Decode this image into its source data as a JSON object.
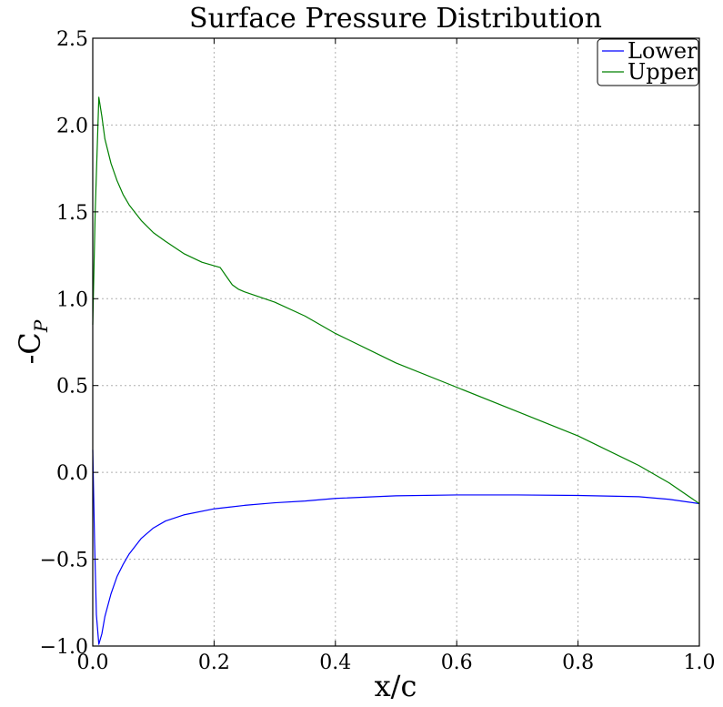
{
  "chart_data": {
    "type": "line",
    "title": "Surface Pressure Distribution",
    "xlabel": "x/c",
    "ylabel_main": "-C",
    "ylabel_sub": "P",
    "xlim": [
      0.0,
      1.0
    ],
    "ylim": [
      -1.0,
      2.5
    ],
    "xticks": [
      "0.0",
      "0.2",
      "0.4",
      "0.6",
      "0.8",
      "1.0"
    ],
    "yticks": [
      "−1.0",
      "−0.5",
      "0.0",
      "0.5",
      "1.0",
      "1.5",
      "2.0",
      "2.5"
    ],
    "grid": true,
    "legend_position": "top-right",
    "series": [
      {
        "name": "Lower",
        "color": "#0000ff",
        "x": [
          0.0,
          0.003,
          0.006,
          0.01,
          0.015,
          0.02,
          0.03,
          0.04,
          0.05,
          0.06,
          0.08,
          0.1,
          0.12,
          0.15,
          0.2,
          0.25,
          0.3,
          0.35,
          0.4,
          0.5,
          0.6,
          0.7,
          0.8,
          0.9,
          0.95,
          1.0
        ],
        "y": [
          0.13,
          -0.4,
          -0.82,
          -0.99,
          -0.93,
          -0.83,
          -0.7,
          -0.6,
          -0.53,
          -0.47,
          -0.38,
          -0.32,
          -0.28,
          -0.245,
          -0.21,
          -0.19,
          -0.175,
          -0.165,
          -0.15,
          -0.135,
          -0.13,
          -0.13,
          -0.133,
          -0.14,
          -0.155,
          -0.18
        ]
      },
      {
        "name": "Upper",
        "color": "#008000",
        "x": [
          0.0,
          0.004,
          0.01,
          0.015,
          0.02,
          0.03,
          0.04,
          0.05,
          0.06,
          0.08,
          0.1,
          0.12,
          0.15,
          0.18,
          0.2,
          0.21,
          0.22,
          0.23,
          0.24,
          0.25,
          0.3,
          0.35,
          0.4,
          0.5,
          0.6,
          0.7,
          0.8,
          0.9,
          0.95,
          1.0
        ],
        "y": [
          0.85,
          1.5,
          2.16,
          2.05,
          1.92,
          1.78,
          1.68,
          1.6,
          1.54,
          1.45,
          1.38,
          1.33,
          1.26,
          1.21,
          1.19,
          1.18,
          1.13,
          1.08,
          1.055,
          1.04,
          0.98,
          0.9,
          0.8,
          0.63,
          0.49,
          0.35,
          0.21,
          0.04,
          -0.06,
          -0.18
        ]
      }
    ]
  }
}
